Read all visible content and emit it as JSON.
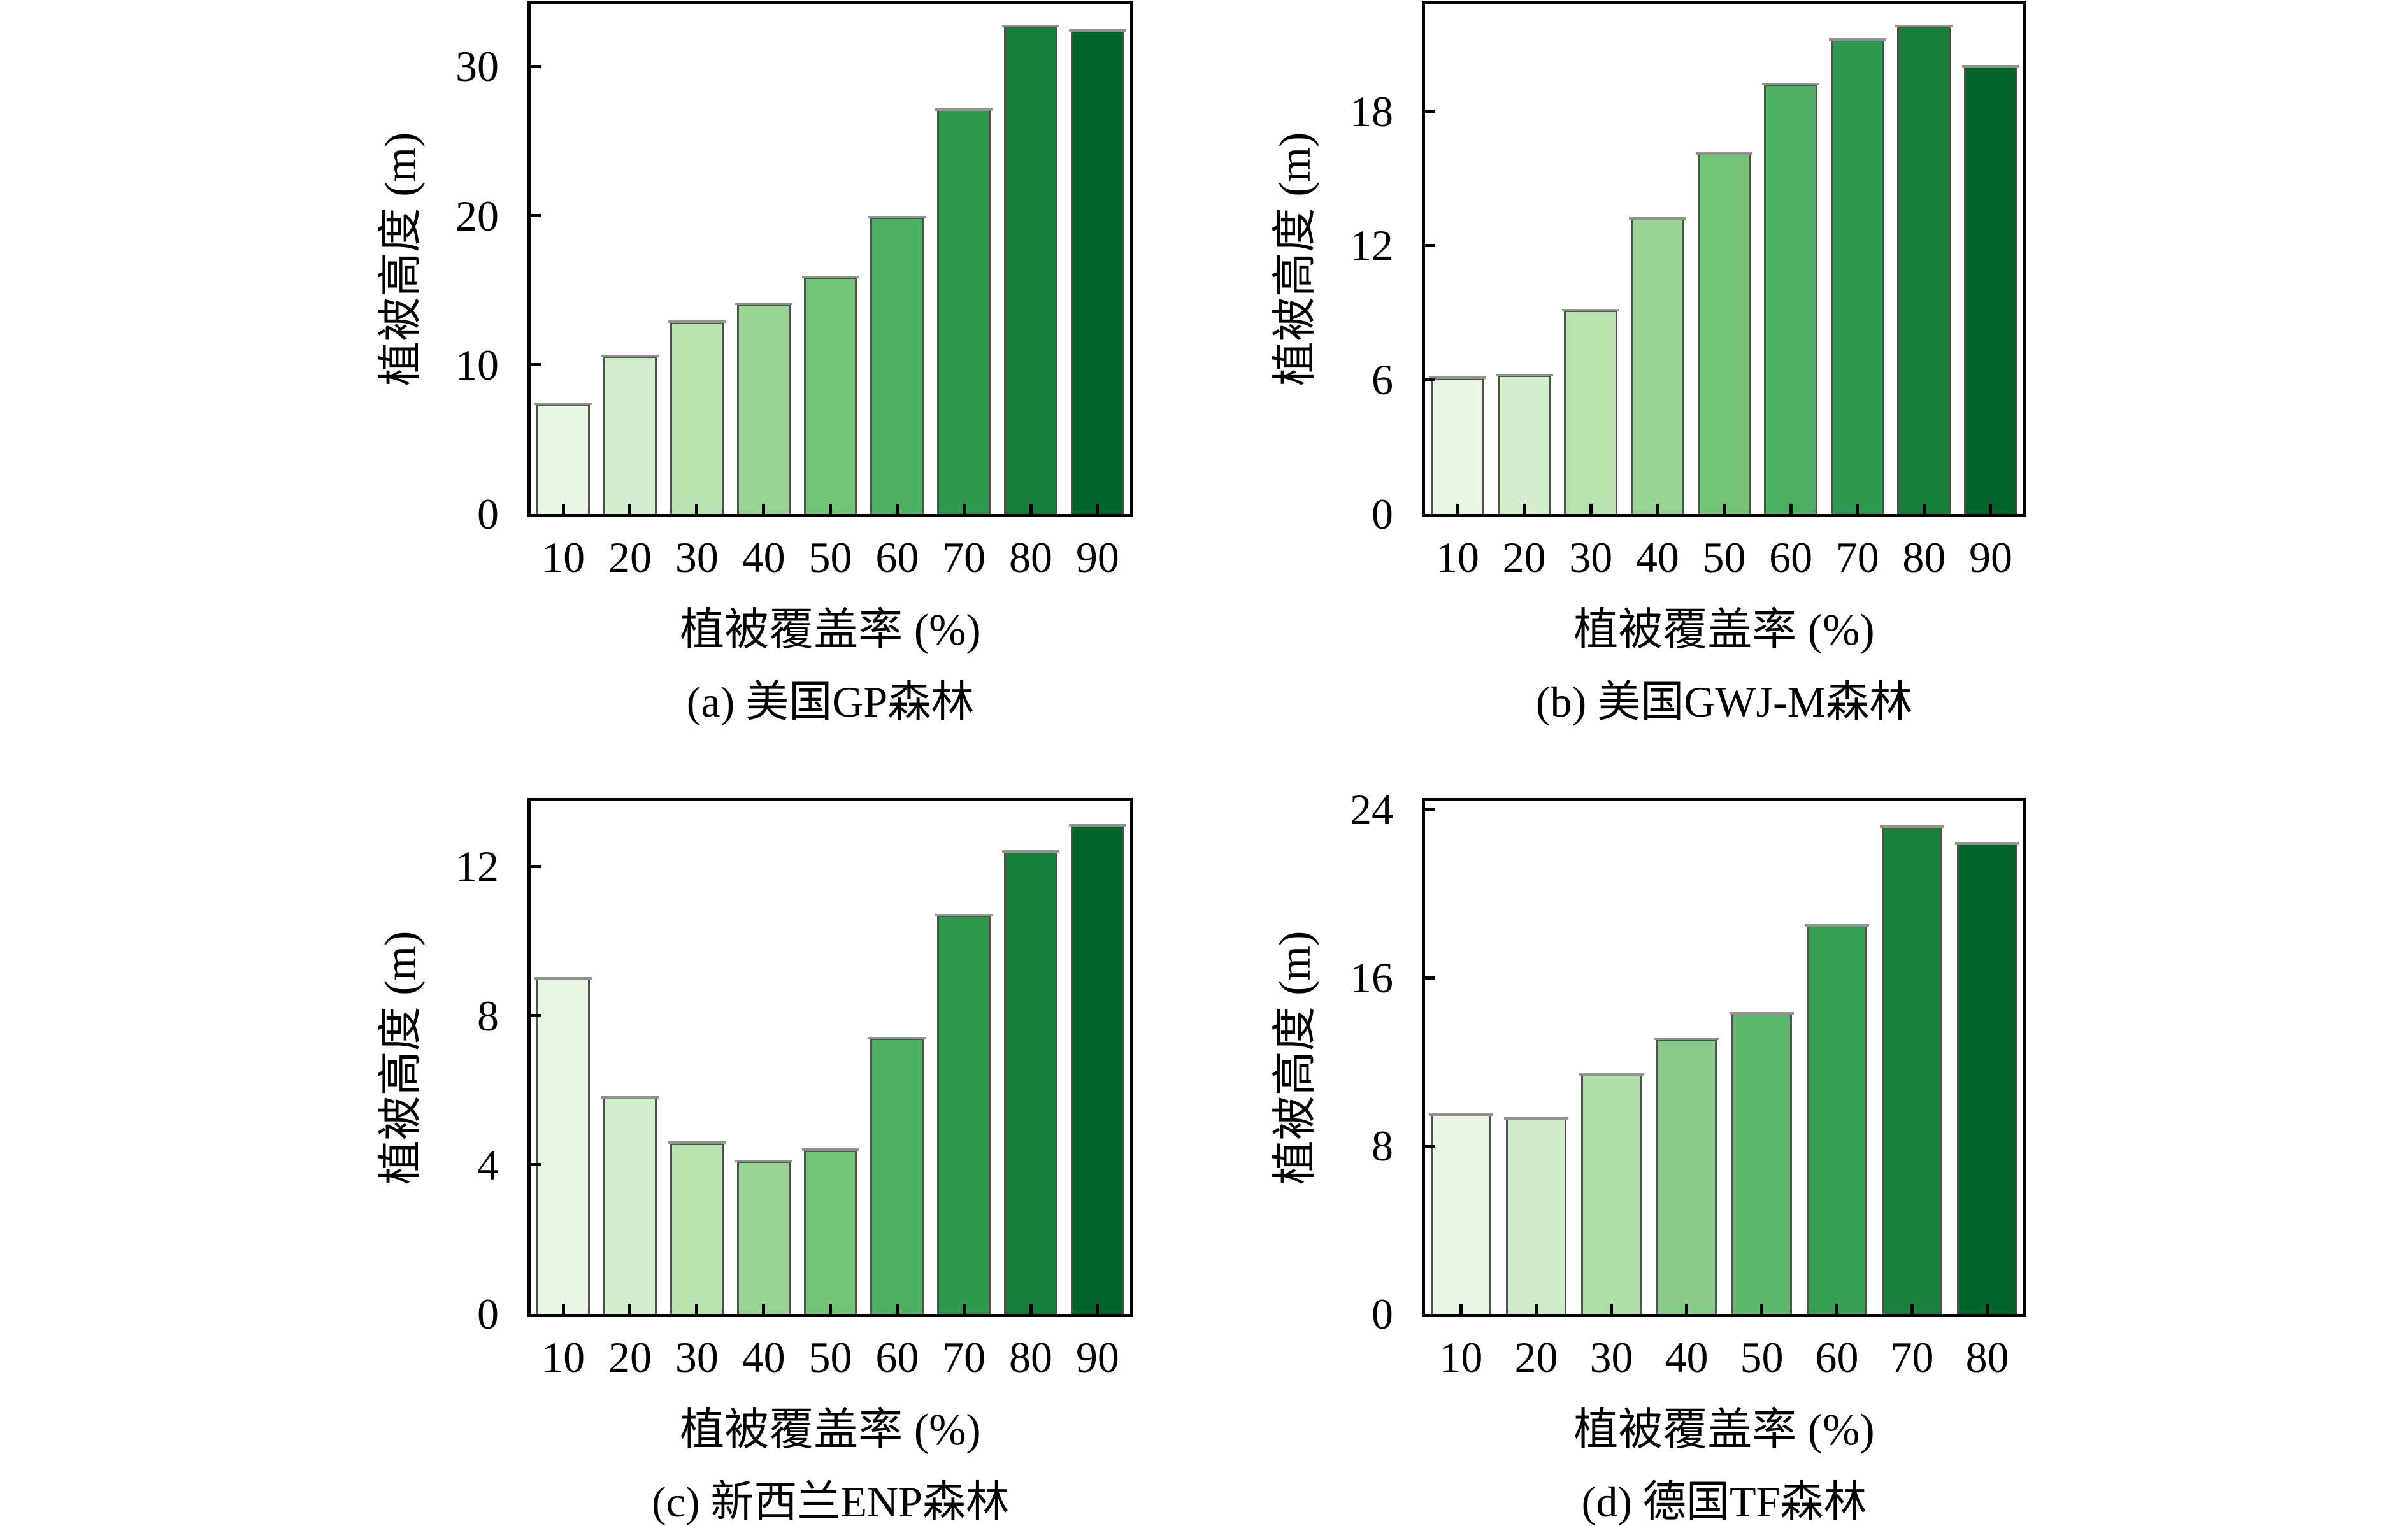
{
  "figure": {
    "background": "#ffffff",
    "text_color": "#000000",
    "axis_line_color": "#000000",
    "bar_edge_color": "#4d524d",
    "bar_cap_color": "#8f948f"
  },
  "chart_data": [
    {
      "id": "a",
      "type": "bar",
      "caption": "(a) 美国GP森林",
      "xlabel": "植被覆盖率 (%)",
      "ylabel": "植被高度 (m)",
      "categories": [
        "10",
        "20",
        "30",
        "40",
        "50",
        "60",
        "70",
        "80",
        "90"
      ],
      "values": [
        7.4,
        10.6,
        12.9,
        14.1,
        15.9,
        19.9,
        27.1,
        32.7,
        32.4
      ],
      "ylim": [
        0,
        34.2
      ],
      "yticks": [
        0,
        10,
        20,
        30
      ],
      "bar_width_frac": 0.8,
      "grid": false,
      "legend": null,
      "bar_colors": [
        "#e9f6e4",
        "#d3eecd",
        "#b8e3b1",
        "#98d594",
        "#74c476",
        "#4bb062",
        "#2f984f",
        "#157f3b",
        "#006529"
      ]
    },
    {
      "id": "b",
      "type": "bar",
      "caption": "(b) 美国GWJ-M森林",
      "xlabel": "植被覆盖率 (%)",
      "ylabel": "植被高度 (m)",
      "categories": [
        "10",
        "20",
        "30",
        "40",
        "50",
        "60",
        "70",
        "80",
        "90"
      ],
      "values": [
        6.1,
        6.2,
        9.1,
        13.2,
        16.1,
        19.2,
        21.2,
        21.8,
        20.0
      ],
      "ylim": [
        0,
        22.8
      ],
      "yticks": [
        0,
        6,
        12,
        18
      ],
      "bar_width_frac": 0.8,
      "grid": false,
      "legend": null,
      "bar_colors": [
        "#e9f6e4",
        "#d3eecd",
        "#b8e3b1",
        "#98d594",
        "#74c476",
        "#4bb062",
        "#2f984f",
        "#157f3b",
        "#006529"
      ]
    },
    {
      "id": "c",
      "type": "bar",
      "caption": "(c) 新西兰ENP森林",
      "xlabel": "植被覆盖率 (%)",
      "ylabel": "植被高度 (m)",
      "categories": [
        "10",
        "20",
        "30",
        "40",
        "50",
        "60",
        "70",
        "80",
        "90"
      ],
      "values": [
        9.0,
        5.8,
        4.6,
        4.1,
        4.4,
        7.4,
        10.7,
        12.4,
        13.1
      ],
      "ylim": [
        0,
        13.75
      ],
      "yticks": [
        0,
        4,
        8,
        12
      ],
      "bar_width_frac": 0.8,
      "grid": false,
      "legend": null,
      "bar_colors": [
        "#e9f6e4",
        "#d3eecd",
        "#b8e3b1",
        "#98d594",
        "#74c476",
        "#4bb062",
        "#2f984f",
        "#157f3b",
        "#006529"
      ]
    },
    {
      "id": "d",
      "type": "bar",
      "caption": "(d) 德国TF森林",
      "xlabel": "植被覆盖率 (%)",
      "ylabel": "植被高度 (m)",
      "categories": [
        "10",
        "20",
        "30",
        "40",
        "50",
        "60",
        "70",
        "80"
      ],
      "values": [
        9.5,
        9.3,
        11.4,
        13.1,
        14.3,
        18.5,
        23.2,
        22.4
      ],
      "ylim": [
        0,
        24.4
      ],
      "yticks": [
        0,
        8,
        16,
        24
      ],
      "bar_width_frac": 0.8,
      "grid": false,
      "legend": null,
      "bar_colors": [
        "#e9f6e4",
        "#cfecc9",
        "#afdea9",
        "#88cd87",
        "#5db86b",
        "#369f54",
        "#19823e",
        "#006529"
      ]
    }
  ]
}
